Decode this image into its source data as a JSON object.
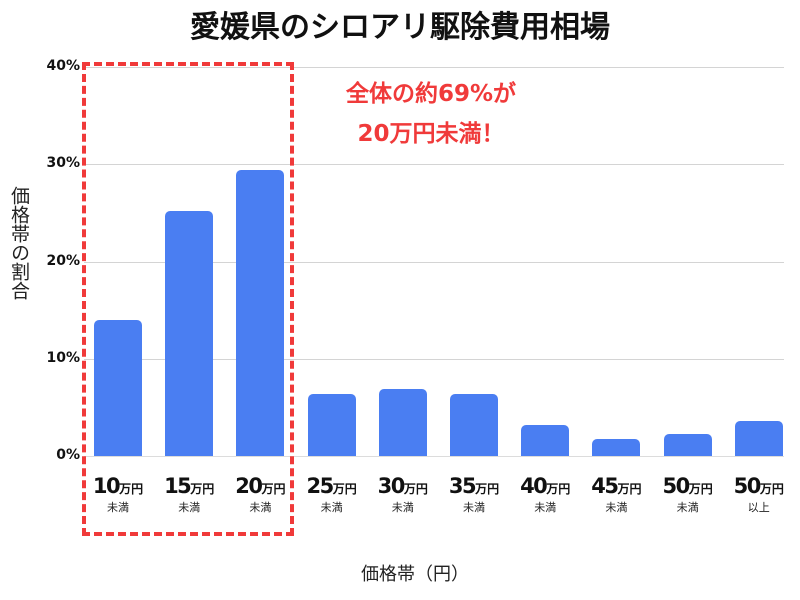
{
  "title": "愛媛県のシロアリ駆除費用相場",
  "axes": {
    "ylabel": "価格帯の割合",
    "xlabel": "価格帯（円）",
    "yticks": [
      "0%",
      "10%",
      "20%",
      "30%",
      "40%"
    ]
  },
  "callout": {
    "line1": "全体の約69%が",
    "line2": "20万円未満！"
  },
  "categories": [
    {
      "num": "10",
      "unit": "万円",
      "sub": "未満"
    },
    {
      "num": "15",
      "unit": "万円",
      "sub": "未満"
    },
    {
      "num": "20",
      "unit": "万円",
      "sub": "未満"
    },
    {
      "num": "25",
      "unit": "万円",
      "sub": "未満"
    },
    {
      "num": "30",
      "unit": "万円",
      "sub": "未満"
    },
    {
      "num": "35",
      "unit": "万円",
      "sub": "未満"
    },
    {
      "num": "40",
      "unit": "万円",
      "sub": "未満"
    },
    {
      "num": "45",
      "unit": "万円",
      "sub": "未満"
    },
    {
      "num": "50",
      "unit": "万円",
      "sub": "未満"
    },
    {
      "num": "50",
      "unit": "万円",
      "sub": "以上"
    }
  ],
  "colors": {
    "bar": "#4a7ef2",
    "highlight": "#f03a3a",
    "grid": "#d4d4d4"
  },
  "chart_data": {
    "type": "bar",
    "title": "愛媛県のシロアリ駆除費用相場",
    "xlabel": "価格帯（円）",
    "ylabel": "価格帯の割合",
    "categories": [
      "10万円未満",
      "15万円未満",
      "20万円未満",
      "25万円未満",
      "30万円未満",
      "35万円未満",
      "40万円未満",
      "45万円未満",
      "50万円未満",
      "50万円以上"
    ],
    "values": [
      14.0,
      25.2,
      29.4,
      6.4,
      6.9,
      6.4,
      3.2,
      1.8,
      2.3,
      3.6
    ],
    "unit": "%",
    "ylim": [
      0,
      40
    ],
    "yticks": [
      0,
      10,
      20,
      30,
      40
    ],
    "grid": true,
    "legend": null,
    "annotations": [
      {
        "text": "全体の約69%が20万円未満！",
        "highlight_categories": [
          "10万円未満",
          "15万円未満",
          "20万円未満"
        ],
        "style": "red dashed box"
      }
    ]
  }
}
